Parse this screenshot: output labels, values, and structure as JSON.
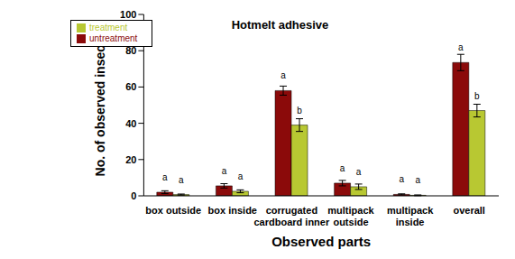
{
  "chart_data": {
    "type": "bar",
    "title": "Hotmelt adhesive",
    "x_label": "Observed parts",
    "y_label": "No. of observed insects",
    "categories": [
      "box outside",
      "box inside",
      "corrugated cardboard inner",
      "multipack outside",
      "multipack inside",
      "overall"
    ],
    "series": [
      {
        "name": "untreatment",
        "color": "#8b0a0a",
        "values": [
          2,
          5.5,
          58,
          7,
          0.8,
          73.5
        ],
        "errors": [
          0.8,
          1.2,
          2.5,
          1.5,
          0.3,
          4.5
        ],
        "letters": [
          "a",
          "a",
          "a",
          "a",
          "a",
          "a"
        ]
      },
      {
        "name": "treatment",
        "color": "#b8c832",
        "values": [
          0.7,
          2.5,
          39,
          5,
          0.3,
          47
        ],
        "errors": [
          0.3,
          0.8,
          3.5,
          1.5,
          0.2,
          3.5
        ],
        "letters": [
          "a",
          "a",
          "b",
          "a",
          "a",
          "b"
        ]
      }
    ],
    "ylim": [
      0,
      100
    ],
    "yticks": [
      0,
      20,
      40,
      60,
      80,
      100
    ],
    "grid": false,
    "legend": "upper left"
  }
}
